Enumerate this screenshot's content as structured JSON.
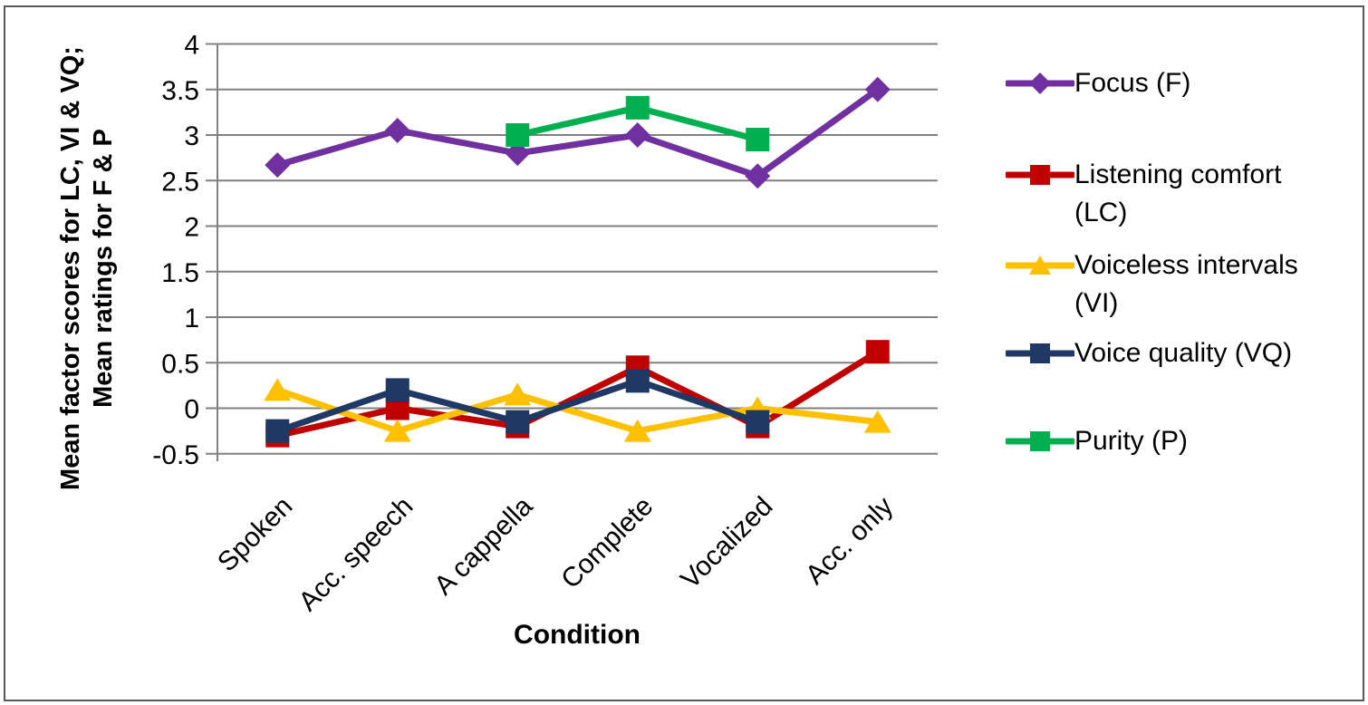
{
  "figure": {
    "background": "#ffffff",
    "border_color": "#595959"
  },
  "axis_style": {
    "line_color": "#808080",
    "grid_color": "#808080",
    "text_color": "#000000"
  },
  "chart_data": {
    "type": "line",
    "title": "",
    "xlabel": "Condition",
    "ylabel_line1": "Mean factor scores for LC, VI & VQ;",
    "ylabel_line2": "Mean ratings for F & P",
    "categories": [
      "Spoken",
      "Acc. speech",
      "A cappella",
      "Complete",
      "Vocalized",
      "Acc. only"
    ],
    "y_ticks": [
      "4",
      "3.5",
      "3",
      "2.5",
      "2",
      "1.5",
      "1",
      "0.5",
      "0",
      "-0.5"
    ],
    "ylim": [
      -0.5,
      4
    ],
    "grid": true,
    "legend_position": "right",
    "series": [
      {
        "name": "Focus (F)",
        "marker": "diamond",
        "color": "#7030A0",
        "values": [
          2.67,
          3.05,
          2.8,
          3.0,
          2.55,
          3.5
        ]
      },
      {
        "name": "Listening comfort (LC)",
        "marker": "square",
        "color": "#C00000",
        "values": [
          -0.3,
          0.0,
          -0.2,
          0.45,
          -0.2,
          0.62
        ]
      },
      {
        "name": "Voiceless intervals (VI)",
        "marker": "triangle",
        "color": "#FFC000",
        "values": [
          0.2,
          -0.25,
          0.15,
          -0.25,
          0.0,
          -0.15
        ]
      },
      {
        "name": "Voice quality (VQ)",
        "marker": "square",
        "color": "#1F3864",
        "values": [
          -0.25,
          0.2,
          -0.15,
          0.3,
          -0.15,
          null
        ]
      },
      {
        "name": "Purity (P)",
        "marker": "square",
        "color": "#00B050",
        "values": [
          null,
          null,
          3.0,
          3.3,
          2.95,
          null
        ]
      }
    ]
  }
}
